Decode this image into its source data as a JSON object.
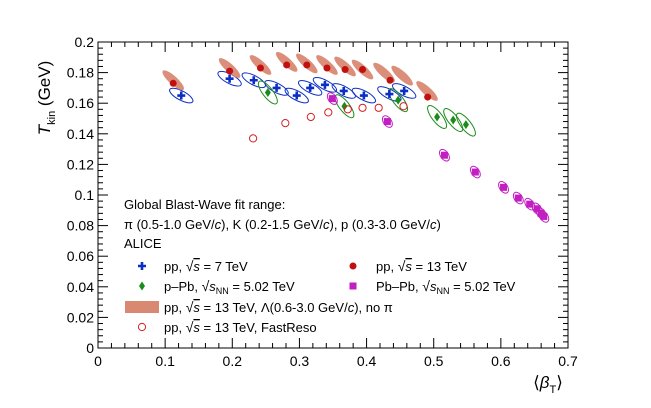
{
  "chart_data": {
    "type": "scatter",
    "title": "",
    "xlabel": "⟨β_T⟩",
    "ylabel": "T_kin (GeV)",
    "xlim": [
      0,
      0.7
    ],
    "ylim": [
      0,
      0.2
    ],
    "x_ticks": [
      "0",
      "0.1",
      "0.2",
      "0.3",
      "0.4",
      "0.5",
      "0.6",
      "0.7"
    ],
    "y_ticks": [
      "0",
      "0.02",
      "0.04",
      "0.06",
      "0.08",
      "0.1",
      "0.12",
      "0.14",
      "0.16",
      "0.18",
      "0.2"
    ],
    "grid": false,
    "annotations": [
      "Global Blast-Wave fit range:",
      "π (0.5-1.0 GeV/c), K (0.2-1.5 GeV/c), p (0.3-3.0 GeV/c)",
      "ALICE"
    ],
    "series": [
      {
        "name": "pp, √s = 7 TeV",
        "color": "#0b2fc4",
        "marker": "cross",
        "points": [
          [
            0.124,
            0.165
          ],
          [
            0.196,
            0.176
          ],
          [
            0.232,
            0.175
          ],
          [
            0.266,
            0.17
          ],
          [
            0.296,
            0.165
          ],
          [
            0.316,
            0.17
          ],
          [
            0.338,
            0.172
          ],
          [
            0.366,
            0.168
          ],
          [
            0.396,
            0.165
          ],
          [
            0.434,
            0.166
          ],
          [
            0.456,
            0.168
          ]
        ]
      },
      {
        "name": "pp, √s = 13 TeV",
        "color": "#c01010",
        "marker": "circle",
        "points": [
          [
            0.112,
            0.173
          ],
          [
            0.196,
            0.181
          ],
          [
            0.242,
            0.183
          ],
          [
            0.281,
            0.185
          ],
          [
            0.311,
            0.185
          ],
          [
            0.341,
            0.183
          ],
          [
            0.368,
            0.182
          ],
          [
            0.394,
            0.182
          ],
          [
            0.435,
            0.175
          ],
          [
            0.491,
            0.164
          ]
        ]
      },
      {
        "name": "p–Pb, √s_NN = 5.02 TeV",
        "color": "#1a8c1a",
        "marker": "diamond",
        "points": [
          [
            0.253,
            0.167
          ],
          [
            0.367,
            0.158
          ],
          [
            0.447,
            0.162
          ],
          [
            0.505,
            0.151
          ],
          [
            0.529,
            0.149
          ],
          [
            0.548,
            0.146
          ]
        ]
      },
      {
        "name": "Pb–Pb, √s_NN = 5.02 TeV",
        "color": "#c21fc2",
        "marker": "square",
        "points": [
          [
            0.349,
            0.163
          ],
          [
            0.431,
            0.148
          ],
          [
            0.516,
            0.126
          ],
          [
            0.562,
            0.115
          ],
          [
            0.604,
            0.105
          ],
          [
            0.626,
            0.098
          ],
          [
            0.643,
            0.094
          ],
          [
            0.654,
            0.091
          ],
          [
            0.66,
            0.088
          ],
          [
            0.664,
            0.086
          ]
        ]
      },
      {
        "name": "pp, √s = 13 TeV, Λ(0.6-3.0 GeV/c), no π",
        "color": "#d98872",
        "marker": "band",
        "points": [
          [
            0.112,
            0.175
          ],
          [
            0.196,
            0.183
          ],
          [
            0.242,
            0.185
          ],
          [
            0.281,
            0.187
          ],
          [
            0.311,
            0.186
          ],
          [
            0.341,
            0.185
          ],
          [
            0.368,
            0.184
          ],
          [
            0.394,
            0.182
          ],
          [
            0.426,
            0.18
          ],
          [
            0.453,
            0.178
          ],
          [
            0.49,
            0.168
          ]
        ]
      },
      {
        "name": "pp, √s = 13 TeV, FastReso",
        "color": "#d52020",
        "marker": "open-circle",
        "points": [
          [
            0.231,
            0.137
          ],
          [
            0.279,
            0.147
          ],
          [
            0.317,
            0.151
          ],
          [
            0.343,
            0.154
          ],
          [
            0.372,
            0.156
          ],
          [
            0.394,
            0.157
          ],
          [
            0.418,
            0.157
          ],
          [
            0.455,
            0.158
          ]
        ]
      }
    ]
  }
}
